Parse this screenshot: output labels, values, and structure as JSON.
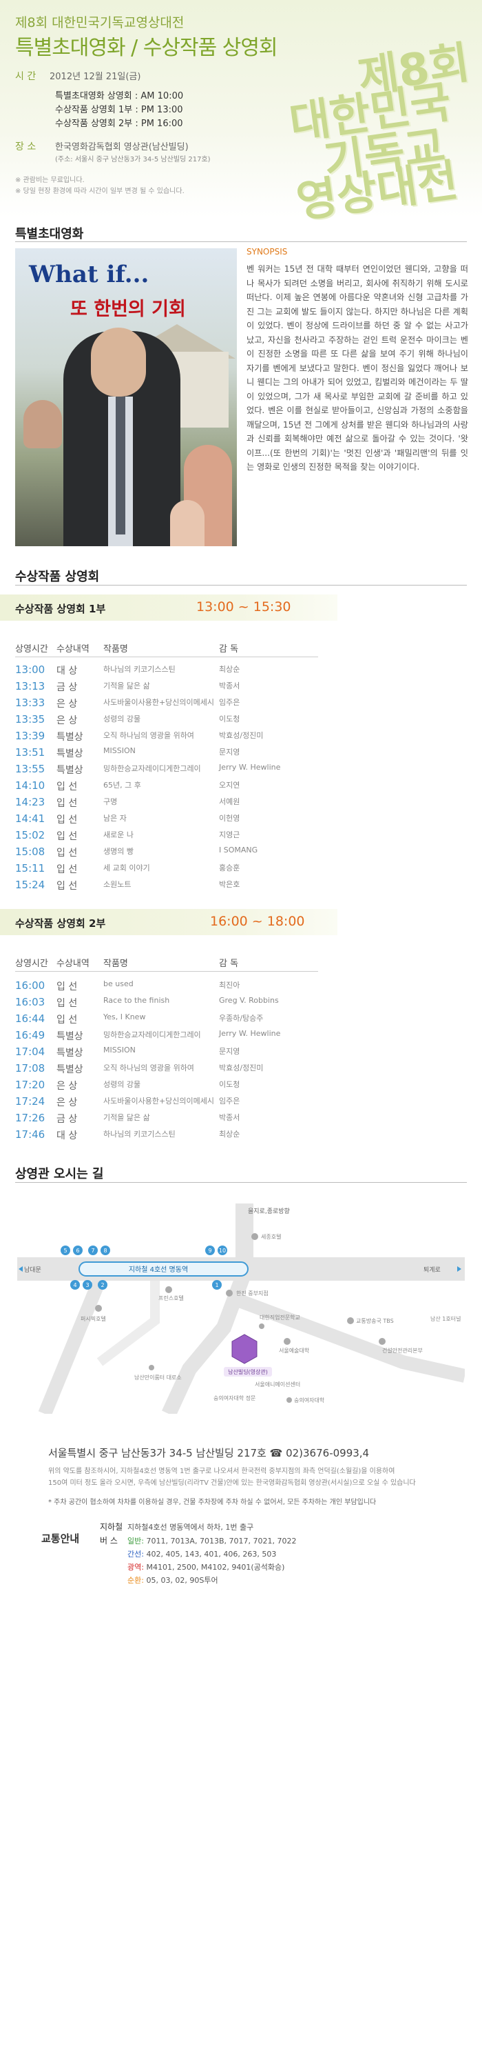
{
  "header": {
    "subtitle": "제8회 대한민국기독교영상대전",
    "title": "특별초대영화 / 수상작품 상영회",
    "emblem_lines": [
      "제8회",
      "대한민국",
      "기독교",
      "영상대전"
    ],
    "date_label": "시 간",
    "date_value": "2012년 12월 21일(금)",
    "schedule": [
      "특별초대영화 상영회 : AM 10:00",
      "수상작품 상영회 1부 : PM 13:00",
      "수상작품 상영회 2부 : PM 16:00"
    ],
    "place_label": "장 소",
    "place_value": "한국영화감독협회 영상관(남산빌딩)",
    "place_addr": "(주소: 서울시 중구 남산동3가 34-5 남산빌딩 217호)",
    "notes": [
      "※ 관람비는 무료입니다.",
      "※ 당일 현장 환경에 따라 시간이 일부 변경 될 수 있습니다."
    ]
  },
  "special": {
    "heading": "특별초대영화",
    "poster_title_en": "What if...",
    "poster_title_ko": "또 한번의 기회",
    "synopsis_label": "SYNOPSIS",
    "synopsis": "벤 워커는 15년 전 대학 때부터 연인이었던 웬디와, 고향을 떠나 목사가 되려던 소명을 버리고, 회사에 취직하기 위해 도시로 떠난다. 이제 높은 연봉에 아름다운 약혼녀와 신형 고급차를 가진 그는 교회에 발도 들이지 않는다. 하지만 하나님은 다른 계획이 있었다. 벤이 정상에 드라이브를 하던 중 알 수 없는 사고가 났고, 자신을 천사라고 주장하는 걷인 트럭 운전수 마이크는 벤이 진정한 소명을 따른 또 다른 삶을 보여 주기 위해 하나님이 자기를 벤에게 보냈다고 말한다. 벤이 정신을 잃었다 깨어나 보니 웬디는 그의 아내가 되어 있었고, 킴벌리와 메건이라는 두 딸이 있었으며, 그가 새 목사로 부임한 교회에 갈 준비를 하고 있었다. 벤은 이를 현실로 받아들이고, 신앙심과 가정의 소중함을 깨달으며, 15년 전 그에게 상처를 받은 웬디와 하나님과의 사랑과 신뢰를 회복해야만 예전 삶으로 돌아갈 수 있는 것이다. '왓 이프...(또 한번의 기회)'는 '멋진 인생'과 '패밀리맨'의 뒤를 잇는 영화로 인생의 진정한 목적을 찾는 이야기이다."
  },
  "awards": {
    "heading": "수상작품 상영회",
    "columns": [
      "상영시간",
      "수상내역",
      "작품명",
      "감 독"
    ],
    "session1": {
      "title": "수상작품 상영회 1부",
      "time": "13:00 ~ 15:30",
      "rows": [
        [
          "13:00",
          "대 상",
          "하나님의 키코기스스틴",
          "최상순"
        ],
        [
          "13:13",
          "금 상",
          "기적을 닮은 삶",
          "박종서"
        ],
        [
          "13:33",
          "은 상",
          "사도바울이사용한+당신의이메세시",
          "임주은"
        ],
        [
          "13:35",
          "은 상",
          "성령의 강물",
          "이도청"
        ],
        [
          "13:39",
          "특별상",
          "오직 하나님의 영광을 위하여",
          "박효성/정진미"
        ],
        [
          "13:51",
          "특별상",
          "MISSION",
          "문지영"
        ],
        [
          "13:55",
          "특별상",
          "밍하한승교자레이디게한그레이",
          "Jerry W. Hewline"
        ],
        [
          "14:10",
          "입 선",
          "65년, 그 후",
          "오지연"
        ],
        [
          "14:23",
          "입 선",
          "구명",
          "서예원"
        ],
        [
          "14:41",
          "입 선",
          "남은 자",
          "이헌영"
        ],
        [
          "15:02",
          "입 선",
          "새로운 나",
          "지영근"
        ],
        [
          "15:08",
          "입 선",
          "생명의 빵",
          "I SOMANG"
        ],
        [
          "15:11",
          "입 선",
          "세 교회 이야기",
          "홍승훈"
        ],
        [
          "15:24",
          "입 선",
          "소원노트",
          "박은호"
        ]
      ]
    },
    "session2": {
      "title": "수상작품 상영회 2부",
      "time": "16:00 ~ 18:00",
      "rows": [
        [
          "16:00",
          "입 선",
          "be used",
          "최진아"
        ],
        [
          "16:03",
          "입 선",
          "Race to the finish",
          "Greg V. Robbins"
        ],
        [
          "16:44",
          "입 선",
          "Yes, I Knew",
          "우종하/탕승주"
        ],
        [
          "16:49",
          "특별상",
          "밍하한승교자레이디게한그레이",
          "Jerry W. Hewline"
        ],
        [
          "17:04",
          "특별상",
          "MISSION",
          "문지영"
        ],
        [
          "17:08",
          "특별상",
          "오직 하나님의 영광을 위하여",
          "박효성/정진미"
        ],
        [
          "17:20",
          "은 상",
          "성령의 강물",
          "이도청"
        ],
        [
          "17:24",
          "은 상",
          "사도바울이사용한+당신의이메세시",
          "임주은"
        ],
        [
          "17:26",
          "금 상",
          "기적을 닮은 삶",
          "박종서"
        ],
        [
          "17:46",
          "대 상",
          "하나님의 키코기스스틴",
          "최상순"
        ]
      ]
    }
  },
  "directions": {
    "heading": "상영관 오시는 길",
    "map_labels": {
      "top": "을지로,종로방향",
      "sejong": "세종호텔",
      "west": "남대문",
      "east": "퇴계로",
      "line": "지하철 4호선 명동역",
      "pacific": "퍼시픽호텔",
      "prince": "프린스호텔",
      "hanjin": "한진 중부지점",
      "univ": "대한직업전문학교",
      "seoul_art": "서울예술대학",
      "tbs": "교통방송국 TBS",
      "namsan_tunnel": "남산 1호터널",
      "hq": "건설안전관리본부",
      "namsan_school": "남산만이룸터 대로소",
      "target": "남산빌딩(영상관)",
      "seoul_ani": "서울애니메이션센터",
      "soongui": "숭의여자대학",
      "soongui_univ": "숭의여자대학 정문",
      "stations": [
        "5",
        "6",
        "7",
        "8",
        "9",
        "10",
        "4",
        "3",
        "2",
        "1"
      ]
    },
    "address": "서울특별시 중구 남산동3가 34-5 남산빌딩 217호 ☎ 02)3676-0993,4",
    "desc1": "위의 약도를 참조하시어, 지하철4호선 명동역 1번 출구로 나오셔서 한국전력 중부지점의 좌측 언덕길(소월길)을 이용하여",
    "desc2": "150여 미터 정도 올라 오시면, 우측에 남산빌딩(리라TV 건물)안에 있는 한국영화감독협회 영상관(서시실)으로 오실 수 있습니다",
    "parking_note": "* 주차 공간이 협소하여 차차를 이용하실 경우, 건물 주차장에 주차 하실 수 없어서, 모든 주차하는 개인 부담입니다",
    "transport_label": "교통안내",
    "subway_key": "지하철",
    "subway_val": "지하철4호선 명동역에서 하차, 1번 출구",
    "bus_key": "버 스",
    "bus": [
      {
        "k": "일반:",
        "v": "7011, 7013A, 7013B, 7017, 7021, 7022",
        "color": "#3a9a3a"
      },
      {
        "k": "간선:",
        "v": "402, 405, 143, 401, 406, 263, 503",
        "color": "#2a5fc0"
      },
      {
        "k": "광역:",
        "v": "M4101, 2500, M4102, 9401(공석화승)",
        "color": "#d22222"
      },
      {
        "k": "순환:",
        "v": "05, 03, 02, 90S투어",
        "color": "#e88a1a"
      }
    ]
  }
}
